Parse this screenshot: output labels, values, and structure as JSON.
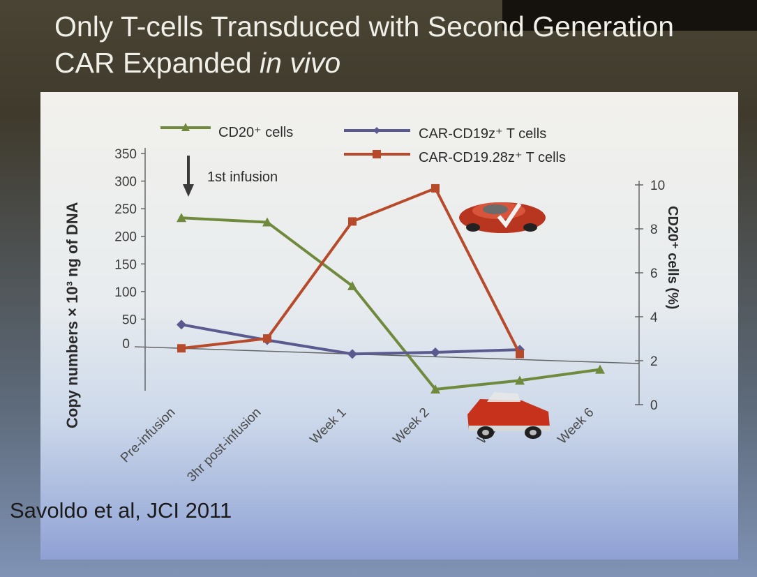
{
  "slide": {
    "title_line1": "Only T-cells Transduced with Second Generation",
    "title_line2_plain": "CAR Expanded ",
    "title_line2_italic": "in vivo",
    "citation": "Savoldo et al, JCI 2011"
  },
  "annotation": {
    "infusion_label": "1st infusion"
  },
  "colors": {
    "cd20": "#6f8a3d",
    "cd19z": "#5b5a8e",
    "cd1928z": "#b84a2c",
    "axis": "#666666",
    "text": "#2a2a2a"
  },
  "icons": [
    "down-arrow-icon",
    "red-sports-car-icon",
    "red-vintage-car-icon"
  ],
  "chart_data": {
    "type": "line",
    "title": "",
    "categories": [
      "Pre-infusion",
      "3hr post-infusion",
      "Week 1",
      "Week 2",
      "Week 4",
      "Week 6"
    ],
    "xlabel": "",
    "ylabel": "Copy numbers × 10³ ng of DNA",
    "y2label": "CD20⁺ cells (%)",
    "ylim": [
      0,
      350
    ],
    "yticks": [
      "50",
      "100",
      "150",
      "200",
      "250",
      "300",
      "350"
    ],
    "y2lim": [
      0,
      10
    ],
    "y2ticks": [
      "0",
      "2",
      "4",
      "6",
      "8",
      "10"
    ],
    "legend": [
      {
        "name": "CD20⁺ cells",
        "marker": "triangle",
        "color": "#6f8a3d"
      },
      {
        "name": "CAR-CD19z⁺ T cells",
        "marker": "diamond",
        "color": "#5b5a8e"
      },
      {
        "name": "CAR-CD19.28z⁺ T cells",
        "marker": "square",
        "color": "#b84a2c"
      }
    ],
    "series": [
      {
        "name": "CD20⁺ cells",
        "axis": "right",
        "marker": "triangle",
        "color": "#6f8a3d",
        "values": [
          8.5,
          8.3,
          5.4,
          0.7,
          1.1,
          1.6
        ]
      },
      {
        "name": "CAR-CD19z⁺ T cells",
        "axis": "left",
        "marker": "diamond",
        "color": "#5b5a8e",
        "values": [
          43,
          20,
          0,
          8,
          18,
          null
        ]
      },
      {
        "name": "CAR-CD19.28z⁺ T cells",
        "axis": "left",
        "marker": "square",
        "color": "#b84a2c",
        "values": [
          0,
          23,
          240,
          305,
          10,
          null
        ]
      }
    ]
  }
}
